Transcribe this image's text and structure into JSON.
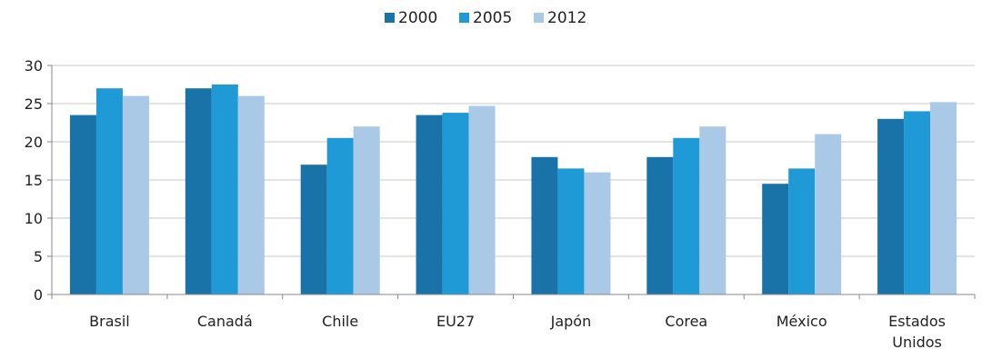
{
  "chart_data": {
    "type": "bar",
    "categories": [
      "Brasil",
      "Canadá",
      "Chile",
      "EU27",
      "Japón",
      "Corea",
      "México",
      "Estados Unidos"
    ],
    "category_label_lines": [
      [
        "Brasil"
      ],
      [
        "Canadá"
      ],
      [
        "Chile"
      ],
      [
        "EU27"
      ],
      [
        "Japón"
      ],
      [
        "Corea"
      ],
      [
        "México"
      ],
      [
        "Estados",
        "Unidos"
      ]
    ],
    "series": [
      {
        "name": "2000",
        "color": "#1a73a8",
        "values": [
          23.5,
          27.0,
          17.0,
          23.5,
          18.0,
          18.0,
          14.5,
          23.0
        ]
      },
      {
        "name": "2005",
        "color": "#1f9ad6",
        "values": [
          27.0,
          27.5,
          20.5,
          23.8,
          16.5,
          20.5,
          16.5,
          24.0
        ]
      },
      {
        "name": "2012",
        "color": "#a9c9e7",
        "values": [
          26.0,
          26.0,
          22.0,
          24.7,
          16.0,
          22.0,
          21.0,
          25.2
        ]
      }
    ],
    "ylim": [
      0,
      30
    ],
    "yticks": [
      "0",
      "5",
      "10",
      "15",
      "20",
      "25",
      "30"
    ],
    "grid": true,
    "legend_position": "top-center",
    "title": "",
    "xlabel": "",
    "ylabel": ""
  }
}
